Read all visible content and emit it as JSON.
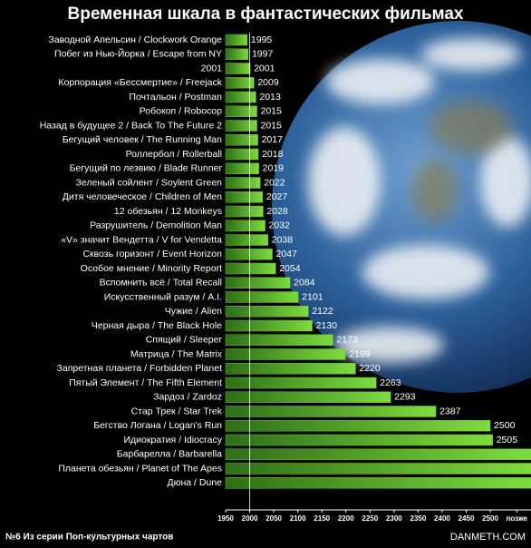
{
  "chart_data": {
    "type": "barh",
    "title": "Временная шкала в фантастических фильмах",
    "categories": [
      "Заводной Апельсин / Clockwork Orange",
      "Побег из Нью-Йорка / Escape from NY",
      "2001",
      "Корпорация «Бессмертие» / Freejack",
      "Почтальон / Postman",
      "Робокоп / Robocop",
      "Назад в будущее 2 / Back To The Future 2",
      "Бегущий человек / The Running Man",
      "Роллербол / Rollerball",
      "Бегущий по лезвию / Blade Runner",
      "Зеленый сойлент / Soylent Green",
      "Дитя человеческое / Children of Men",
      "12 обезьян / 12 Monkeys",
      "Разрушитель / Demolition Man",
      "«V» значит Вендетта / V for Vendetta",
      "Сквозь горизонт / Event Horizon",
      "Особое мнение / Minority Report",
      "Вспомнить всё / Total Recall",
      "Искусственный разум / A.I.",
      "Чужие / Alien",
      "Черная дыра / The Black Hole",
      "Спящий / Sleeper",
      "Матрица / The Matrix",
      "Запретная планета / Forbidden Planet",
      "Пятый Элемент / The Fifth Element",
      "Зардоз / Zardoz",
      "Стар Трек / Star Trek",
      "Бегство Логана / Logan's Run",
      "Идиократия / Idiocracy",
      "Барбарелла / Barbarella",
      "Планета обезьян / Planet of The Apes",
      "Дюна / Dune"
    ],
    "values": [
      1995,
      1997,
      2001,
      2009,
      2013,
      2015,
      2015,
      2017,
      2018,
      2019,
      2022,
      2027,
      2028,
      2032,
      2038,
      2047,
      2054,
      2084,
      2101,
      2122,
      2130,
      2173,
      2199,
      2220,
      2263,
      2293,
      2387,
      2500,
      2505,
      2585,
      2585,
      2585
    ],
    "value_labels": [
      "1995",
      "1997",
      "2001",
      "2009",
      "2013",
      "2015",
      "2015",
      "2017",
      "2018",
      "2019",
      "2022",
      "2027",
      "2028",
      "2032",
      "2038",
      "2047",
      "2054",
      "2084",
      "2101",
      "2122",
      "2130",
      "2173",
      "2199",
      "2220",
      "2263",
      "2293",
      "2387",
      "2500",
      "2505",
      null,
      null,
      null
    ],
    "color": "#5fbf2c",
    "xlim": [
      1950,
      2585
    ],
    "xticks": [
      1950,
      2000,
      2050,
      2100,
      2150,
      2200,
      2250,
      2300,
      2350,
      2400,
      2450,
      2500,
      {
        "value": 2555,
        "label": "позже"
      }
    ],
    "footer_left": "№6 Из серии Поп-культурных чартов",
    "footer_right": "DANMETH.COM"
  }
}
